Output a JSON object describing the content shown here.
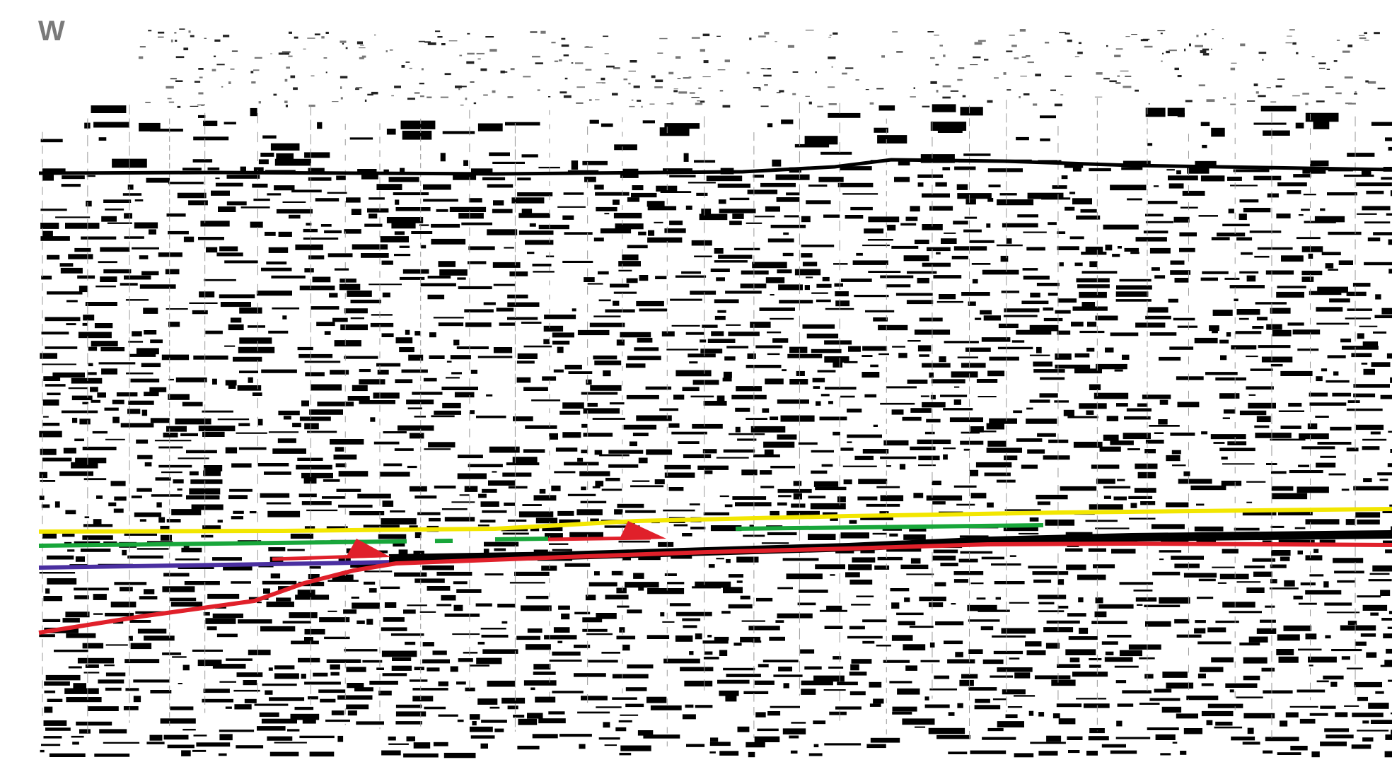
{
  "section": {
    "direction_label": "W"
  },
  "interpretation": {
    "horizons": [
      {
        "id": "seabed",
        "color": "#000000"
      },
      {
        "id": "yellow",
        "color": "#f2e600"
      },
      {
        "id": "green",
        "color": "#18a63a"
      },
      {
        "id": "purple",
        "color": "#4a2fa0"
      },
      {
        "id": "red",
        "color": "#e0202a"
      }
    ],
    "faults": [
      {
        "id": "thrust-1",
        "color": "#e0202a"
      },
      {
        "id": "thrust-2",
        "color": "#e0202a"
      }
    ]
  }
}
